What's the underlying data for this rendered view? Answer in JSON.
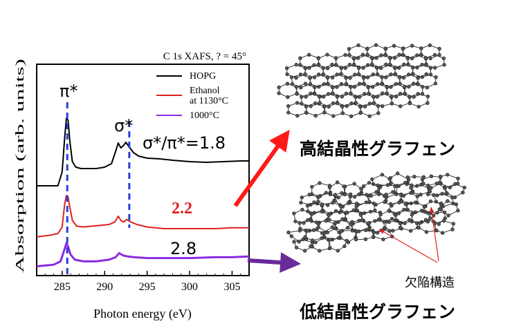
{
  "chart_data": {
    "type": "line",
    "title": "C 1s XAFS, ? = 45°",
    "xlabel": "Photon energy (eV)",
    "ylabel": "Absorption (arb. units)",
    "xlim": [
      282,
      307
    ],
    "xticks": [
      285,
      290,
      295,
      300,
      305
    ],
    "grid": false,
    "legend_position": "top-right",
    "series": [
      {
        "name": "HOPG",
        "color": "#000000",
        "x": [
          282,
          283.5,
          284.5,
          285.0,
          285.3,
          285.5,
          285.7,
          285.9,
          286.2,
          286.6,
          287.2,
          288,
          289,
          290,
          290.8,
          291.3,
          291.6,
          291.9,
          292.2,
          292.5,
          292.9,
          293.4,
          294,
          295,
          296.5,
          298,
          300,
          302,
          304,
          306,
          307
        ],
        "y": [
          0.0,
          0.0,
          0.0,
          0.2,
          0.7,
          0.98,
          0.95,
          0.65,
          0.35,
          0.27,
          0.25,
          0.25,
          0.25,
          0.27,
          0.32,
          0.5,
          0.62,
          0.55,
          0.58,
          0.63,
          0.56,
          0.48,
          0.43,
          0.4,
          0.39,
          0.37,
          0.35,
          0.34,
          0.35,
          0.36,
          0.36
        ]
      },
      {
        "name": "Ethanol at 1130°C",
        "color": "#e02020",
        "x": [
          282,
          283.5,
          284.5,
          285.0,
          285.3,
          285.5,
          285.7,
          285.9,
          286.2,
          286.7,
          287.5,
          288.5,
          289.5,
          290.5,
          291.2,
          291.6,
          291.9,
          292.2,
          292.6,
          293.1,
          293.8,
          295,
          297,
          300,
          303,
          305,
          307
        ],
        "y": [
          0.0,
          0.02,
          0.04,
          0.12,
          0.4,
          0.5,
          0.48,
          0.36,
          0.2,
          0.13,
          0.12,
          0.13,
          0.14,
          0.15,
          0.18,
          0.25,
          0.2,
          0.18,
          0.21,
          0.18,
          0.15,
          0.12,
          0.1,
          0.1,
          0.1,
          0.11,
          0.11
        ]
      },
      {
        "name": "1000°C",
        "color": "#8a2be2",
        "x": [
          282,
          283,
          284,
          284.8,
          285.2,
          285.5,
          285.7,
          286.0,
          286.5,
          287.5,
          289,
          290.5,
          291.3,
          291.7,
          292.2,
          292.7,
          293.5,
          295,
          297,
          300,
          303,
          305,
          307
        ],
        "y": [
          0.02,
          0.03,
          0.04,
          0.08,
          0.2,
          0.3,
          0.26,
          0.16,
          0.1,
          0.08,
          0.08,
          0.1,
          0.13,
          0.18,
          0.15,
          0.14,
          0.13,
          0.12,
          0.12,
          0.12,
          0.13,
          0.13,
          0.14
        ]
      }
    ],
    "peak_markers": [
      {
        "label": "π*",
        "x": 285.6
      },
      {
        "label": "σ*",
        "x": 292.9
      }
    ],
    "ratio_labels": [
      {
        "text": "σ*/π*=1.8",
        "series": "HOPG"
      },
      {
        "text": "2.2",
        "series": "Ethanol at 1130°C"
      },
      {
        "text": "2.8",
        "series": "1000°C"
      }
    ]
  },
  "annotations": {
    "high_label": "高結晶性グラフェン",
    "low_label": "低結晶性グラフェン",
    "defect_label": "欠陥構造",
    "ylabel_visible": "Absorption (arb. units)"
  },
  "colors": {
    "accent_red": "#ff1a1a",
    "accent_purple": "#6a2a9a",
    "marker_blue": "#2a3bd8"
  }
}
